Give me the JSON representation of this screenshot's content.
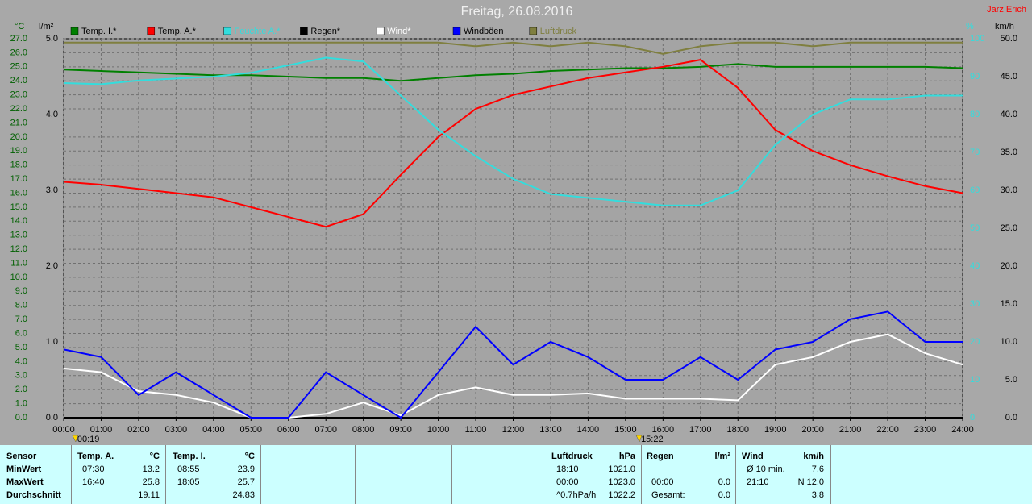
{
  "chart_data": {
    "type": "line",
    "title": "Freitag, 26.08.2016",
    "author": "Jarz Erich",
    "ylabel": "°C",
    "y4label": "l/m²",
    "y2label": "%",
    "y3label": "km/h",
    "x": [
      0,
      1,
      2,
      3,
      4,
      5,
      6,
      7,
      8,
      9,
      10,
      11,
      12,
      13,
      14,
      15,
      16,
      17,
      18,
      19,
      20,
      21,
      22,
      23,
      24
    ],
    "xlim": [
      0,
      24
    ],
    "xticks": [
      {
        "value": 0,
        "label": "00:00"
      },
      {
        "value": 1,
        "label": "01:00"
      },
      {
        "value": 2,
        "label": "02:00"
      },
      {
        "value": 3,
        "label": "03:00"
      },
      {
        "value": 4,
        "label": "04:00"
      },
      {
        "value": 5,
        "label": "05:00"
      },
      {
        "value": 6,
        "label": "06:00"
      },
      {
        "value": 7,
        "label": "07:00"
      },
      {
        "value": 8,
        "label": "08:00"
      },
      {
        "value": 9,
        "label": "09:00"
      },
      {
        "value": 10,
        "label": "10:00"
      },
      {
        "value": 11,
        "label": "11:00"
      },
      {
        "value": 12,
        "label": "12:00"
      },
      {
        "value": 13,
        "label": "13:00"
      },
      {
        "value": 14,
        "label": "14:00"
      },
      {
        "value": 15,
        "label": "15:00"
      },
      {
        "value": 16,
        "label": "16:00"
      },
      {
        "value": 17,
        "label": "17:00"
      },
      {
        "value": 18,
        "label": "18:00"
      },
      {
        "value": 19,
        "label": "19:00"
      },
      {
        "value": 20,
        "label": "20:00"
      },
      {
        "value": 21,
        "label": "21:00"
      },
      {
        "value": 22,
        "label": "22:00"
      },
      {
        "value": 23,
        "label": "23:00"
      },
      {
        "value": 24,
        "label": "24:00"
      }
    ],
    "ylim": [
      0,
      27
    ],
    "yticks": [
      {
        "value": 0,
        "label": "0.0"
      },
      {
        "value": 1,
        "label": "1.0"
      },
      {
        "value": 2,
        "label": "2.0"
      },
      {
        "value": 3,
        "label": "3.0"
      },
      {
        "value": 4,
        "label": "4.0"
      },
      {
        "value": 5,
        "label": "5.0"
      },
      {
        "value": 6,
        "label": "6.0"
      },
      {
        "value": 7,
        "label": "7.0"
      },
      {
        "value": 8,
        "label": "8.0"
      },
      {
        "value": 9,
        "label": "9.0"
      },
      {
        "value": 10,
        "label": "10.0"
      },
      {
        "value": 11,
        "label": "11.0"
      },
      {
        "value": 12,
        "label": "12.0"
      },
      {
        "value": 13,
        "label": "13.0"
      },
      {
        "value": 14,
        "label": "14.0"
      },
      {
        "value": 15,
        "label": "15.0"
      },
      {
        "value": 16,
        "label": "16.0"
      },
      {
        "value": 17,
        "label": "17.0"
      },
      {
        "value": 18,
        "label": "18.0"
      },
      {
        "value": 19,
        "label": "19.0"
      },
      {
        "value": 20,
        "label": "20.0"
      },
      {
        "value": 21,
        "label": "21.0"
      },
      {
        "value": 22,
        "label": "22.0"
      },
      {
        "value": 23,
        "label": "23.0"
      },
      {
        "value": 24,
        "label": "24.0"
      },
      {
        "value": 25,
        "label": "25.0"
      },
      {
        "value": 26,
        "label": "26.0"
      },
      {
        "value": 27,
        "label": "27.0"
      }
    ],
    "y4lim": [
      0,
      5
    ],
    "y4ticks": [
      {
        "value": 0,
        "label": "0.0"
      },
      {
        "value": 1,
        "label": "1.0"
      },
      {
        "value": 2,
        "label": "2.0"
      },
      {
        "value": 3,
        "label": "3.0"
      },
      {
        "value": 4,
        "label": "4.0"
      },
      {
        "value": 5,
        "label": "5.0"
      }
    ],
    "y2lim": [
      0,
      100
    ],
    "y2ticks": [
      0,
      10,
      20,
      30,
      40,
      50,
      60,
      70,
      80,
      90,
      100
    ],
    "y3lim": [
      0,
      50
    ],
    "y3ticks": [
      {
        "value": 0,
        "label": "0.0"
      },
      {
        "value": 5,
        "label": "5.0"
      },
      {
        "value": 10,
        "label": "10.0"
      },
      {
        "value": 15,
        "label": "15.0"
      },
      {
        "value": 20,
        "label": "20.0"
      },
      {
        "value": 25,
        "label": "25.0"
      },
      {
        "value": 30,
        "label": "30.0"
      },
      {
        "value": 35,
        "label": "35.0"
      },
      {
        "value": 40,
        "label": "40.0"
      },
      {
        "value": 45,
        "label": "45.0"
      },
      {
        "value": 50,
        "label": "50.0"
      }
    ],
    "grid": true,
    "series": [
      {
        "name": "Temp. I.*",
        "color": "#008000",
        "label_color": "#000000",
        "axis": "y",
        "values": [
          24.8,
          24.7,
          24.6,
          24.5,
          24.4,
          24.4,
          24.3,
          24.2,
          24.2,
          24.0,
          24.2,
          24.4,
          24.5,
          24.7,
          24.8,
          24.9,
          24.9,
          25.0,
          25.2,
          25.0,
          25.0,
          25.0,
          25.0,
          25.0,
          24.9
        ]
      },
      {
        "name": "Temp. A.*",
        "color": "#ff0000",
        "label_color": "#000000",
        "axis": "y",
        "values": [
          16.8,
          16.6,
          16.3,
          16.0,
          15.7,
          15.0,
          14.3,
          13.6,
          14.5,
          17.3,
          20.0,
          22.0,
          23.0,
          23.6,
          24.2,
          24.6,
          25.0,
          25.5,
          23.5,
          20.5,
          19.0,
          18.0,
          17.2,
          16.5,
          16.0
        ]
      },
      {
        "name": "Feuchte A.*",
        "color": "#33dddd",
        "label_color": "#33dddd",
        "axis": "y2",
        "values": [
          88.3,
          88,
          89,
          89.5,
          90,
          91,
          93,
          95,
          94,
          85,
          76,
          69,
          63,
          59,
          58,
          57,
          56,
          56,
          60,
          72,
          80,
          84,
          84,
          85,
          85
        ]
      },
      {
        "name": "Regen*",
        "color": "#000000",
        "label_color": "#000000",
        "axis": "y4",
        "values": [
          0,
          0,
          0,
          0,
          0,
          0,
          0,
          0,
          0,
          0,
          0,
          0,
          0,
          0,
          0,
          0,
          0,
          0,
          0,
          0,
          0,
          0,
          0,
          0,
          0
        ]
      },
      {
        "name": "Wind*",
        "color": "#ffffff",
        "label_color": "#ffffff",
        "axis": "y3",
        "values": [
          6.5,
          6,
          3.5,
          3,
          2,
          0,
          0,
          0.5,
          2,
          0.3,
          3,
          4,
          3,
          3,
          3.2,
          2.5,
          2.5,
          2.5,
          2.3,
          7,
          8,
          10,
          11,
          8.5,
          7
        ]
      },
      {
        "name": "Windböen",
        "color": "#0000ff",
        "label_color": "#000000",
        "axis": "y3",
        "values": [
          9,
          8,
          3,
          6,
          3,
          0,
          0,
          6,
          3,
          0,
          6,
          12,
          7,
          10,
          8,
          5,
          5,
          8,
          5,
          9,
          10,
          13,
          14,
          10,
          10
        ]
      },
      {
        "name": "Luftdruck",
        "color": "#7f7f3f",
        "label_color": "#7f7f3f",
        "axis": "y2",
        "values": [
          99,
          99,
          99,
          99,
          99,
          99,
          99,
          99,
          99,
          99,
          99,
          98,
          99,
          98,
          99,
          98,
          96,
          98,
          99,
          99,
          98,
          99,
          99,
          99,
          99
        ]
      }
    ],
    "annotations": [
      {
        "text": "00:19",
        "x": 0.32
      },
      {
        "text": "15:22",
        "x": 15.37
      }
    ]
  },
  "table": {
    "rows": [
      [
        "Sensor",
        "Temp. A.",
        "°C",
        "Temp. I.",
        "°C",
        "Luftdruck",
        "hPa",
        "Regen",
        "l/m²",
        "Wind",
        "km/h"
      ],
      [
        "MinWert",
        "07:30",
        "13.2",
        "08:55",
        "23.9",
        "18:10",
        "1021.0",
        null,
        null,
        "Ø 10 min.",
        "7.6"
      ],
      [
        "MaxWert",
        "16:40",
        "25.8",
        "18:05",
        "25.7",
        "00:00",
        "1023.0",
        "00:00",
        "0.0",
        "21:10",
        "N 12.0"
      ],
      [
        "Durchschnitt",
        null,
        "19.11",
        null,
        "24.83",
        "^0.7hPa/h",
        "1022.2",
        "Gesamt:",
        "0.0",
        null,
        "3.8"
      ]
    ]
  }
}
